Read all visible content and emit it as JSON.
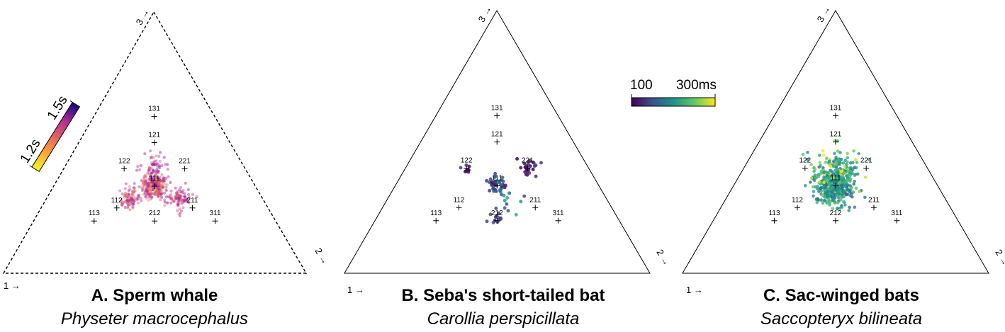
{
  "chart_data": [
    {
      "type": "scatter",
      "panel": "A",
      "title": "A. Sperm whale",
      "subtitle": "Physeter macrocephalus",
      "frame_style": "dashed",
      "corner_labels": {
        "top": "3 →",
        "right": "2 →",
        "left": "1 →"
      },
      "colorbar": {
        "min_label": "1.2s",
        "max_label": "1.5s",
        "colormap": "plasma",
        "orientation": "diagonal"
      },
      "markers": [
        {
          "label": "131",
          "ratio": [
            1,
            3,
            1
          ]
        },
        {
          "label": "121",
          "ratio": [
            1,
            2,
            1
          ]
        },
        {
          "label": "122",
          "ratio": [
            1,
            2,
            2
          ]
        },
        {
          "label": "221",
          "ratio": [
            2,
            2,
            1
          ]
        },
        {
          "label": "111",
          "ratio": [
            1,
            1,
            1
          ]
        },
        {
          "label": "112",
          "ratio": [
            1,
            1,
            2
          ]
        },
        {
          "label": "211",
          "ratio": [
            2,
            1,
            1
          ]
        },
        {
          "label": "113",
          "ratio": [
            1,
            1,
            3
          ]
        },
        {
          "label": "212",
          "ratio": [
            2,
            1,
            2
          ]
        },
        {
          "label": "311",
          "ratio": [
            3,
            1,
            1
          ]
        }
      ],
      "clusters": [
        {
          "center": [
            1,
            1,
            1
          ],
          "spread": 0.03,
          "count": 260,
          "cmin": 0.25,
          "cmax": 0.75
        },
        {
          "center": [
            1,
            1.05,
            1.6
          ],
          "spread": 0.025,
          "count": 90,
          "cmin": 0.3,
          "cmax": 0.65
        },
        {
          "center": [
            1.6,
            1.05,
            1
          ],
          "spread": 0.025,
          "count": 90,
          "cmin": 0.3,
          "cmax": 0.65
        },
        {
          "center": [
            1,
            1.35,
            1
          ],
          "spread": 0.03,
          "count": 60,
          "cmin": 0.2,
          "cmax": 0.6
        }
      ],
      "dot_opacity": 0.45
    },
    {
      "type": "scatter",
      "panel": "B",
      "title": "B. Seba's short-tailed bat",
      "subtitle": "Carollia perspicillata",
      "frame_style": "solid",
      "corner_labels": {
        "top": "3 →",
        "right": "2 →",
        "left": "1 →"
      },
      "colorbar": {
        "min_label": "100",
        "max_label": "300ms",
        "colormap": "viridis",
        "orientation": "horizontal"
      },
      "markers": [
        {
          "label": "131",
          "ratio": [
            1,
            3,
            1
          ]
        },
        {
          "label": "121",
          "ratio": [
            1,
            2,
            1
          ]
        },
        {
          "label": "122",
          "ratio": [
            1,
            2,
            2
          ]
        },
        {
          "label": "221",
          "ratio": [
            2,
            2,
            1
          ]
        },
        {
          "label": "111",
          "ratio": [
            1,
            1,
            1
          ]
        },
        {
          "label": "112",
          "ratio": [
            1,
            1,
            2
          ]
        },
        {
          "label": "211",
          "ratio": [
            2,
            1,
            1
          ]
        },
        {
          "label": "113",
          "ratio": [
            1,
            1,
            3
          ]
        },
        {
          "label": "212",
          "ratio": [
            2,
            1,
            2
          ]
        },
        {
          "label": "311",
          "ratio": [
            3,
            1,
            1
          ]
        }
      ],
      "clusters": [
        {
          "center": [
            1,
            1,
            1
          ],
          "spread": 0.022,
          "count": 45,
          "cmin": 0.0,
          "cmax": 0.55
        },
        {
          "center": [
            2,
            2,
            1
          ],
          "spread": 0.02,
          "count": 28,
          "cmin": 0.0,
          "cmax": 0.2
        },
        {
          "center": [
            1,
            2,
            2
          ],
          "spread": 0.018,
          "count": 9,
          "cmin": 0.0,
          "cmax": 0.2
        },
        {
          "center": [
            2,
            1,
            2
          ],
          "spread": 0.025,
          "count": 13,
          "cmin": 0.0,
          "cmax": 0.3
        },
        {
          "center": [
            1.5,
            1,
            1.2
          ],
          "spread": 0.03,
          "count": 10,
          "cmin": 0.2,
          "cmax": 0.7
        }
      ],
      "dot_opacity": 0.85
    },
    {
      "type": "scatter",
      "panel": "C",
      "title": "C. Sac-winged bats",
      "subtitle": "Saccopteryx bilineata",
      "frame_style": "solid",
      "corner_labels": {
        "top": "3 →",
        "right": "2 →",
        "left": "1 →"
      },
      "markers": [
        {
          "label": "131",
          "ratio": [
            1,
            3,
            1
          ]
        },
        {
          "label": "121",
          "ratio": [
            1,
            2,
            1
          ]
        },
        {
          "label": "122",
          "ratio": [
            1,
            2,
            2
          ]
        },
        {
          "label": "221",
          "ratio": [
            2,
            2,
            1
          ]
        },
        {
          "label": "111",
          "ratio": [
            1,
            1,
            1
          ]
        },
        {
          "label": "112",
          "ratio": [
            1,
            1,
            2
          ]
        },
        {
          "label": "211",
          "ratio": [
            2,
            1,
            1
          ]
        },
        {
          "label": "113",
          "ratio": [
            1,
            1,
            3
          ]
        },
        {
          "label": "212",
          "ratio": [
            2,
            1,
            2
          ]
        },
        {
          "label": "311",
          "ratio": [
            3,
            1,
            1
          ]
        }
      ],
      "clusters": [
        {
          "center": [
            1,
            1,
            1
          ],
          "spread": 0.045,
          "count": 380,
          "cmin": 0.3,
          "cmax": 0.75
        },
        {
          "center": [
            1,
            1.3,
            1
          ],
          "spread": 0.06,
          "count": 120,
          "cmin": 0.4,
          "cmax": 1.0
        }
      ],
      "dot_opacity": 0.8
    }
  ]
}
